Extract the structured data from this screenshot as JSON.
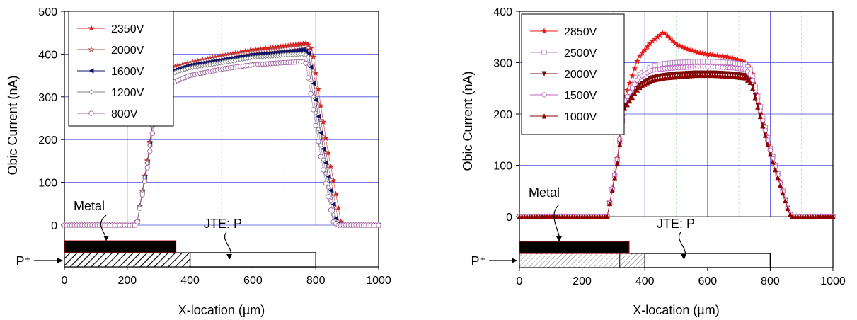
{
  "chart_data": [
    {
      "type": "line",
      "xlabel": "X-location (µm)",
      "ylabel": "Obic Current (nA)",
      "xlim": [
        0,
        1000
      ],
      "ylim": [
        0,
        500
      ],
      "xticks": [
        0,
        200,
        400,
        600,
        800,
        1000
      ],
      "yticks": [
        0,
        100,
        200,
        300,
        400,
        500
      ],
      "grid": true,
      "legend_position": "top-left",
      "series": [
        {
          "name": "2350V",
          "marker": "star",
          "color": "#d42020",
          "plateau": [
            [
              300,
              360
            ],
            [
              400,
              380
            ],
            [
              500,
              395
            ],
            [
              600,
              410
            ],
            [
              700,
              418
            ],
            [
              770,
              425
            ],
            [
              780,
              420
            ]
          ],
          "edges": {
            "x0": 233,
            "x1": 300,
            "x2": 790,
            "x3": 880
          }
        },
        {
          "name": "2000V",
          "marker": "star-open",
          "color": "#b05050",
          "plateau": [
            [
              300,
              355
            ],
            [
              400,
              378
            ],
            [
              500,
              392
            ],
            [
              600,
              405
            ],
            [
              700,
              412
            ],
            [
              770,
              418
            ],
            [
              780,
              412
            ]
          ],
          "edges": {
            "x0": 233,
            "x1": 300,
            "x2": 785,
            "x3": 872
          }
        },
        {
          "name": "1600V",
          "marker": "triangle-left",
          "color": "#10106a",
          "plateau": [
            [
              300,
              350
            ],
            [
              400,
              374
            ],
            [
              500,
              386
            ],
            [
              600,
              398
            ],
            [
              700,
              405
            ],
            [
              760,
              410
            ],
            [
              775,
              405
            ]
          ],
          "edges": {
            "x0": 233,
            "x1": 300,
            "x2": 780,
            "x3": 866
          }
        },
        {
          "name": "1200V",
          "marker": "diamond-open",
          "color": "#808080",
          "plateau": [
            [
              300,
              345
            ],
            [
              400,
              368
            ],
            [
              500,
              380
            ],
            [
              600,
              392
            ],
            [
              700,
              398
            ],
            [
              760,
              400
            ],
            [
              770,
              398
            ]
          ],
          "edges": {
            "x0": 233,
            "x1": 300,
            "x2": 775,
            "x3": 860
          }
        },
        {
          "name": "800V",
          "marker": "circle-open",
          "color": "#a060a0",
          "plateau": [
            [
              300,
              320
            ],
            [
              400,
              350
            ],
            [
              500,
              365
            ],
            [
              600,
              375
            ],
            [
              700,
              380
            ],
            [
              760,
              382
            ],
            [
              770,
              378
            ]
          ],
          "edges": {
            "x0": 233,
            "x1": 300,
            "x2": 772,
            "x3": 855
          }
        }
      ],
      "annotations": {
        "metal": "Metal",
        "jte": "JTE: P",
        "pplus": "P⁺"
      },
      "structure": {
        "metal": [
          0,
          355
        ],
        "p_hatched": [
          0,
          400
        ],
        "p_divider": 330,
        "jte": [
          400,
          800
        ]
      }
    },
    {
      "type": "line",
      "xlabel": "X-location (µm)",
      "ylabel": "Obic Current (nA)",
      "xlim": [
        0,
        1000
      ],
      "ylim": [
        -50,
        400
      ],
      "xticks": [
        0,
        200,
        400,
        600,
        800,
        1000
      ],
      "yticks": [
        0,
        100,
        200,
        300,
        400
      ],
      "grid": true,
      "legend_position": "top-left",
      "series": [
        {
          "name": "2850V",
          "marker": "star",
          "color": "#e81818",
          "plateau": [
            [
              335,
              230
            ],
            [
              380,
              310
            ],
            [
              420,
              340
            ],
            [
              460,
              360
            ],
            [
              500,
              335
            ],
            [
              540,
              325
            ],
            [
              580,
              318
            ],
            [
              620,
              315
            ],
            [
              660,
              312
            ],
            [
              700,
              305
            ],
            [
              720,
              300
            ]
          ],
          "edges": {
            "x0": 285,
            "x1": 335,
            "x2": 740,
            "x3": 860
          }
        },
        {
          "name": "2500V",
          "marker": "cross-square",
          "color": "#b080c0",
          "plateau": [
            [
              335,
              220
            ],
            [
              380,
              275
            ],
            [
              420,
              292
            ],
            [
              460,
              298
            ],
            [
              500,
              300
            ],
            [
              560,
              302
            ],
            [
              620,
              302
            ],
            [
              680,
              300
            ],
            [
              720,
              296
            ]
          ],
          "edges": {
            "x0": 285,
            "x1": 335,
            "x2": 740,
            "x3": 860
          }
        },
        {
          "name": "2000V",
          "marker": "triangle-down",
          "color": "#7a0a0a",
          "plateau": [
            [
              335,
              215
            ],
            [
              380,
              255
            ],
            [
              420,
              270
            ],
            [
              460,
              275
            ],
            [
              500,
              278
            ],
            [
              560,
              280
            ],
            [
              620,
              280
            ],
            [
              680,
              278
            ],
            [
              720,
              275
            ]
          ],
          "edges": {
            "x0": 285,
            "x1": 335,
            "x2": 740,
            "x3": 860
          }
        },
        {
          "name": "1500V",
          "marker": "circle-open",
          "color": "#c060c0",
          "plateau": [
            [
              335,
              225
            ],
            [
              380,
              270
            ],
            [
              420,
              285
            ],
            [
              460,
              288
            ],
            [
              500,
              290
            ],
            [
              560,
              292
            ],
            [
              620,
              292
            ],
            [
              680,
              290
            ],
            [
              720,
              287
            ]
          ],
          "edges": {
            "x0": 285,
            "x1": 335,
            "x2": 740,
            "x3": 860
          }
        },
        {
          "name": "1000V",
          "marker": "triangle-up",
          "color": "#900000",
          "plateau": [
            [
              335,
              210
            ],
            [
              380,
              250
            ],
            [
              420,
              265
            ],
            [
              460,
              270
            ],
            [
              500,
              272
            ],
            [
              560,
              275
            ],
            [
              620,
              275
            ],
            [
              680,
              273
            ],
            [
              720,
              270
            ]
          ],
          "edges": {
            "x0": 285,
            "x1": 335,
            "x2": 740,
            "x3": 860
          }
        }
      ],
      "annotations": {
        "metal": "Metal",
        "jte": "JTE: P",
        "pplus": "P⁺"
      },
      "structure": {
        "metal": [
          0,
          350
        ],
        "p_hatched": [
          0,
          400
        ],
        "p_divider": 320,
        "jte": [
          400,
          800
        ]
      }
    }
  ]
}
